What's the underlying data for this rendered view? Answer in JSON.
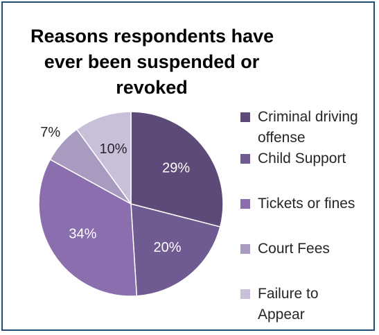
{
  "chart_data": {
    "type": "pie",
    "title_lines": [
      "Reasons respondents have",
      "ever been suspended or",
      "revoked"
    ],
    "slices": [
      {
        "label_lines": [
          "Criminal driving",
          "offense"
        ],
        "value": 29,
        "value_label": "29%",
        "color": "#5e4a78"
      },
      {
        "label_lines": [
          "Child Support"
        ],
        "value": 20,
        "value_label": "20%",
        "color": "#6f5a91"
      },
      {
        "label_lines": [
          "Tickets or fines"
        ],
        "value": 34,
        "value_label": "34%",
        "color": "#8a6ead"
      },
      {
        "label_lines": [
          "Court Fees"
        ],
        "value": 7,
        "value_label": "7%",
        "color": "#a99bc0"
      },
      {
        "label_lines": [
          "Failure to",
          "Appear"
        ],
        "value": 10,
        "value_label": "10%",
        "color": "#c8c0d8"
      }
    ],
    "legend_position": "right"
  },
  "colors": {
    "border": "#1f4e79",
    "inside_label": "#ffffff",
    "outside_label": "#262626"
  }
}
